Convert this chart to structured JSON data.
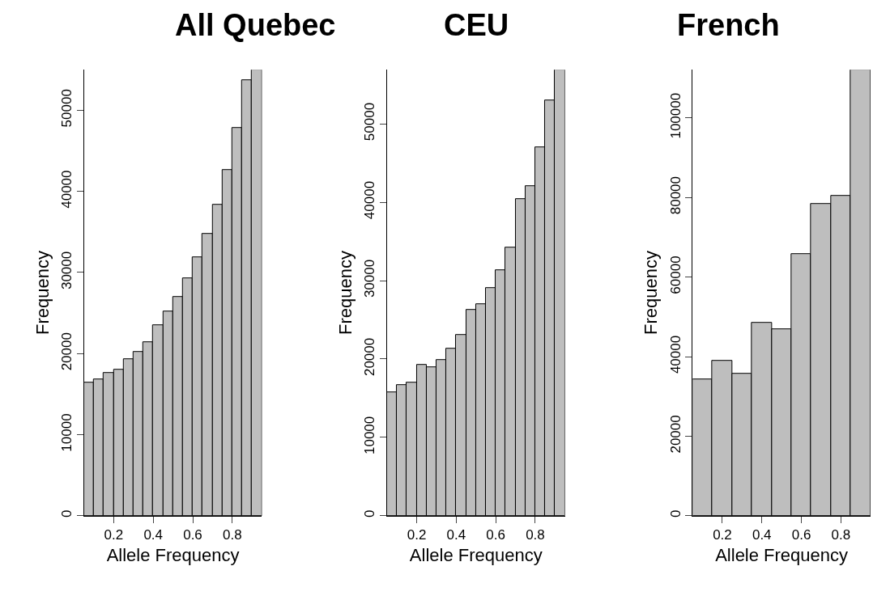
{
  "chart_data": [
    {
      "type": "histogram",
      "title": "All Quebec",
      "xlabel": "Allele Frequency",
      "ylabel": "Frequency",
      "bins": [
        0.05,
        0.1,
        0.15,
        0.2,
        0.25,
        0.3,
        0.35,
        0.4,
        0.45,
        0.5,
        0.55,
        0.6,
        0.65,
        0.7,
        0.75,
        0.8,
        0.85,
        0.9,
        0.95
      ],
      "values": [
        16400,
        16800,
        17600,
        18000,
        19300,
        20200,
        21400,
        23500,
        25200,
        27000,
        29300,
        31900,
        34800,
        38400,
        42600,
        47800,
        53700,
        55000
      ],
      "color": "#bebebe",
      "xlim": [
        0.05,
        0.95
      ],
      "xticks": [
        0.2,
        0.4,
        0.6,
        0.8
      ],
      "ylim": [
        0,
        55000
      ],
      "yticks": [
        0,
        10000,
        20000,
        30000,
        40000,
        50000
      ]
    },
    {
      "type": "histogram",
      "title": "CEU",
      "xlabel": "Allele Frequency",
      "ylabel": "Frequency",
      "bins": [
        0.05,
        0.1,
        0.15,
        0.2,
        0.25,
        0.3,
        0.35,
        0.4,
        0.45,
        0.5,
        0.55,
        0.6,
        0.65,
        0.7,
        0.75,
        0.8,
        0.85,
        0.9,
        0.95
      ],
      "values": [
        15800,
        16700,
        17000,
        19300,
        18900,
        19900,
        21300,
        23100,
        26300,
        27000,
        29100,
        31300,
        34200,
        40400,
        42000,
        47000,
        53000,
        56900
      ],
      "color": "#bebebe",
      "xlim": [
        0.05,
        0.95
      ],
      "xticks": [
        0.2,
        0.4,
        0.6,
        0.8
      ],
      "ylim": [
        0,
        56900
      ],
      "yticks": [
        0,
        10000,
        20000,
        30000,
        40000,
        50000
      ]
    },
    {
      "type": "histogram",
      "title": "French",
      "xlabel": "Allele Frequency",
      "ylabel": "Frequency",
      "bins": [
        0.05,
        0.15,
        0.25,
        0.35,
        0.45,
        0.55,
        0.65,
        0.75,
        0.85,
        0.95
      ],
      "values": [
        34200,
        38900,
        35700,
        48600,
        46800,
        65800,
        78400,
        80500,
        112100
      ],
      "color": "#bebebe",
      "xlim": [
        0.05,
        0.95
      ],
      "xticks": [
        0.2,
        0.4,
        0.6,
        0.8
      ],
      "ylim": [
        0,
        112100
      ],
      "yticks": [
        0,
        20000,
        40000,
        60000,
        80000,
        100000
      ]
    }
  ]
}
